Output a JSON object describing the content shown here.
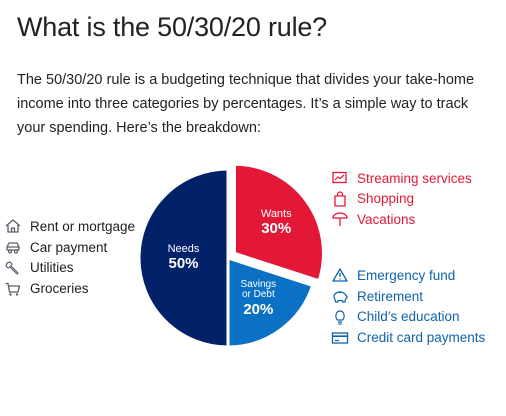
{
  "title": "What is the 50/30/20 rule?",
  "intro": "The 50/30/20 rule is a budgeting technique that divides your take-home income into three categories by percentages. It’s a simple way to track your spending. Here’s the breakdown:",
  "colors": {
    "needs": "#012169",
    "wants": "#e31837",
    "savings": "#0b71c5",
    "wants_text": "#e31837",
    "savings_text": "#0e63ad",
    "icon_gray": "#5a5f6b"
  },
  "chart_data": {
    "type": "pie",
    "categories": [
      "Needs",
      "Wants",
      "Savings or Debt"
    ],
    "values": [
      50,
      30,
      20
    ],
    "value_labels": [
      "50%",
      "30%",
      "20%"
    ],
    "slice_colors": [
      "#012169",
      "#e31837",
      "#0b71c5"
    ],
    "exploded": "Wants",
    "legend_groups": [
      {
        "group": "Needs",
        "items": [
          {
            "label": "Rent or mortgage",
            "icon": "house-icon"
          },
          {
            "label": "Car payment",
            "icon": "car-icon"
          },
          {
            "label": "Utilities",
            "icon": "wrench-icon"
          },
          {
            "label": "Groceries",
            "icon": "shopping-cart-icon"
          }
        ]
      },
      {
        "group": "Wants",
        "items": [
          {
            "label": "Streaming services",
            "icon": "screen-chart-icon"
          },
          {
            "label": "Shopping",
            "icon": "shopping-bag-icon"
          },
          {
            "label": "Vacations",
            "icon": "beach-umbrella-icon"
          }
        ]
      },
      {
        "group": "Savings or Debt",
        "items": [
          {
            "label": "Emergency fund",
            "icon": "warning-triangle-icon"
          },
          {
            "label": "Retirement",
            "icon": "piggy-bank-icon"
          },
          {
            "label": "Child’s education",
            "icon": "lightbulb-icon"
          },
          {
            "label": "Credit card payments",
            "icon": "credit-card-icon"
          }
        ]
      }
    ]
  }
}
